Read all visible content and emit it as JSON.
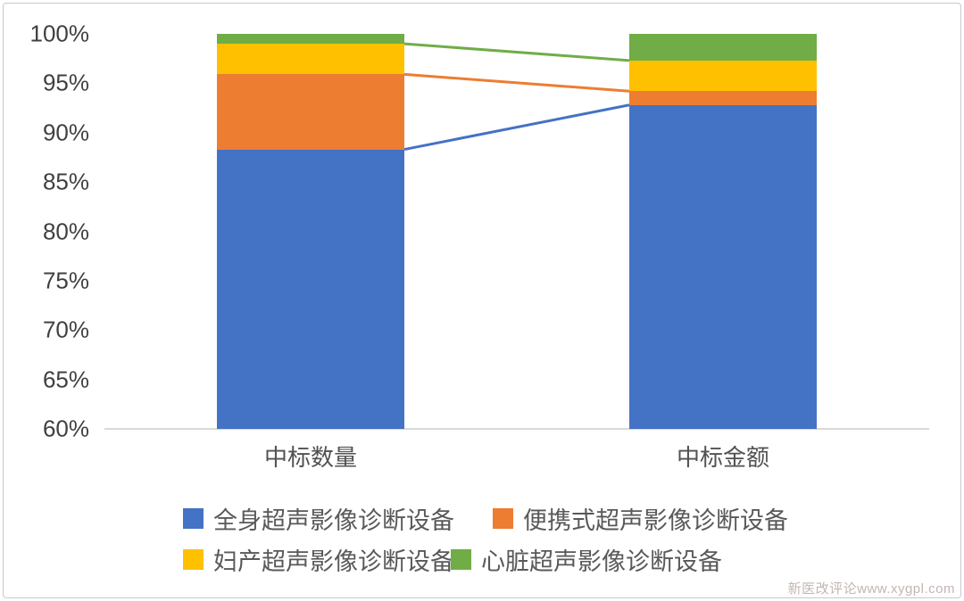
{
  "watermark": {
    "text": "新医改评论www.xygpl.com",
    "color": "#c4b5b2"
  },
  "chart_data": {
    "type": "bar",
    "subtype": "stacked-100-percent-column",
    "title": "",
    "xlabel": "",
    "ylabel": "",
    "grid": false,
    "categories": [
      "中标数量",
      "中标金额"
    ],
    "series": [
      {
        "name": "全身超声影像诊断设备",
        "color": "#4472C4",
        "values": [
          88.3,
          92.8
        ]
      },
      {
        "name": "便携式超声影像诊断设备",
        "color": "#ED7D31",
        "values": [
          7.6,
          1.4
        ]
      },
      {
        "name": "妇产超声影像诊断设备",
        "color": "#FFC000",
        "values": [
          3.1,
          3.1
        ]
      },
      {
        "name": "心脏超声影像诊断设备",
        "color": "#70AD47",
        "values": [
          1.0,
          2.7
        ]
      }
    ],
    "y_axis": {
      "min": 60,
      "max": 100,
      "step": 5,
      "unit": "%",
      "tick_labels": [
        "100%",
        "95%",
        "90%",
        "85%",
        "80%",
        "75%",
        "70%",
        "65%",
        "60%"
      ]
    },
    "connector_lines": [
      {
        "after_series": 0,
        "color": "#4472C4"
      },
      {
        "after_series": 1,
        "color": "#ED7D31"
      },
      {
        "after_series": 2,
        "color": "#70AD47"
      }
    ],
    "legend": {
      "position": "bottom",
      "rows": [
        [
          0,
          1
        ],
        [
          2,
          3
        ]
      ]
    }
  }
}
